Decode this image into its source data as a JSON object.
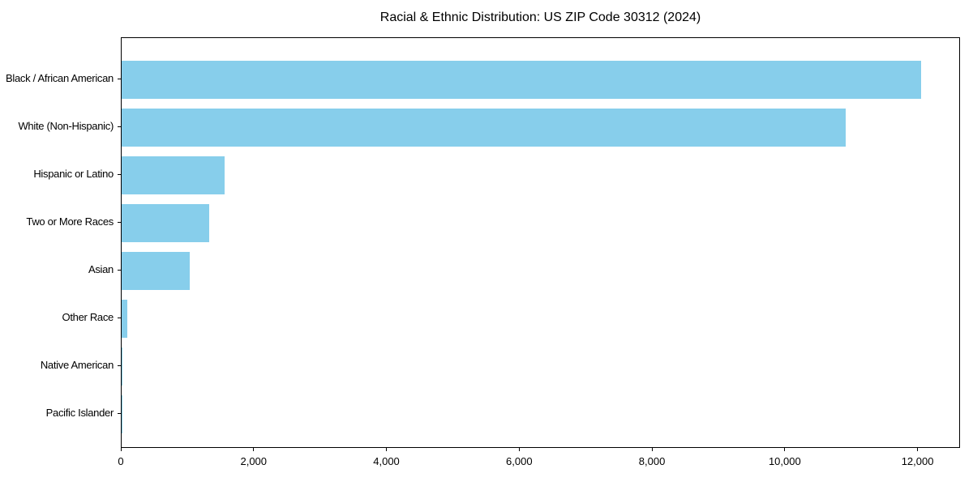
{
  "chart_data": {
    "type": "bar",
    "orientation": "horizontal",
    "title": "Racial & Ethnic Distribution: US ZIP Code 30312 (2024)",
    "categories": [
      "Black / African American",
      "White (Non-Hispanic)",
      "Hispanic or Latino",
      "Two or More Races",
      "Asian",
      "Other Race",
      "Native American",
      "Pacific Islander"
    ],
    "values": [
      12040,
      10900,
      1545,
      1315,
      1020,
      90,
      15,
      6
    ],
    "xlabel": "",
    "ylabel": "",
    "xlim": [
      0,
      12640
    ],
    "xticks": [
      0,
      2000,
      4000,
      6000,
      8000,
      10000,
      12000
    ],
    "xtick_labels": [
      "0",
      "2,000",
      "4,000",
      "6,000",
      "8,000",
      "10,000",
      "12,000"
    ],
    "bar_color": "#87CEEB",
    "background_color": "#FFFFFF",
    "spine_color": "#000000",
    "text_color": "#000000",
    "grid": false,
    "legend_position": "none"
  }
}
